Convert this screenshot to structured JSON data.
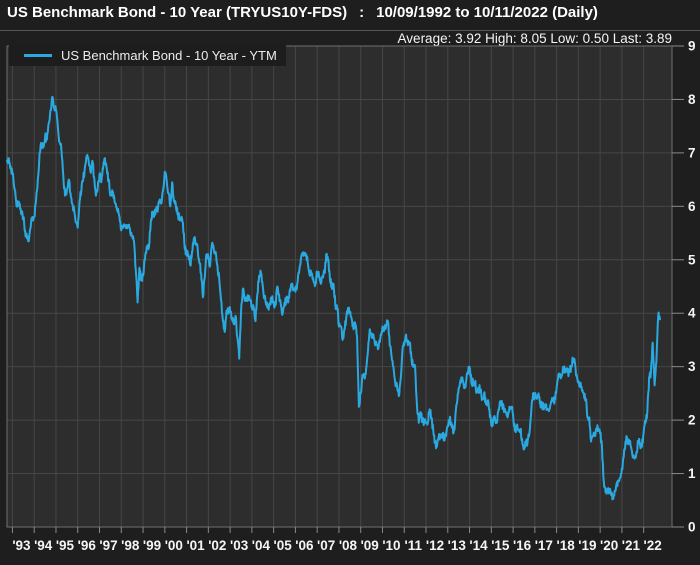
{
  "header": {
    "title_main": "US Benchmark Bond - 10 Year (TRYUS10Y-FDS)",
    "title_colon": ":",
    "title_range": "10/09/1992 to 10/11/2022 (Daily)",
    "stats_text": "Average: 3.92 High: 8.05 Low: 0.50 Last: 3.89"
  },
  "legend": {
    "series_label": "US Benchmark Bond - 10 Year - YTM"
  },
  "chart_data": {
    "type": "line",
    "title": "US Benchmark Bond - 10 Year (TRYUS10Y-FDS)",
    "series_name": "US Benchmark Bond - 10 Year - YTM",
    "date_range": {
      "start": "10/09/1992",
      "end": "10/11/2022",
      "frequency": "Daily"
    },
    "stats": {
      "average": 3.92,
      "high": 8.05,
      "low": 0.5,
      "last": 3.89
    },
    "y_axis": {
      "min": 0,
      "max": 9,
      "step": 1,
      "side": "right",
      "ticks": [
        "0",
        "1",
        "2",
        "3",
        "4",
        "5",
        "6",
        "7",
        "8",
        "9"
      ]
    },
    "x_tick_labels": [
      "'93",
      "'94",
      "'95",
      "'96",
      "'97",
      "'98",
      "'99",
      "'00",
      "'01",
      "'02",
      "'03",
      "'04",
      "'05",
      "'06",
      "'07",
      "'08",
      "'09",
      "'10",
      "'11",
      "'12",
      "'13",
      "'14",
      "'15",
      "'16",
      "'17",
      "'18",
      "'19",
      "'20",
      "'21",
      "'22"
    ],
    "grid": true,
    "line_color": "#2aa9e0",
    "colors": {
      "page_bg": "#1e1e1e",
      "plot_bg": "#2d2d2d",
      "grid": "#464646",
      "border": "#707070",
      "tick": "#8a8a8a",
      "text": "#f5f5f5"
    },
    "series_start": {
      "year": 1992,
      "month": 10
    },
    "monthly_ytm": [
      6.85,
      6.9,
      6.75,
      6.6,
      6.35,
      6.1,
      6.0,
      6.05,
      5.85,
      5.8,
      5.55,
      5.4,
      5.35,
      5.6,
      5.8,
      5.8,
      6.1,
      6.5,
      7.0,
      7.15,
      7.1,
      7.3,
      7.25,
      7.55,
      7.8,
      8.05,
      7.85,
      7.8,
      7.5,
      7.2,
      7.05,
      6.6,
      6.2,
      6.3,
      6.5,
      6.25,
      6.05,
      5.95,
      5.7,
      5.6,
      6.1,
      6.3,
      6.5,
      6.75,
      6.9,
      6.85,
      6.65,
      6.85,
      6.55,
      6.2,
      6.35,
      6.6,
      6.45,
      6.7,
      6.9,
      6.7,
      6.5,
      6.2,
      6.3,
      6.2,
      6.05,
      5.9,
      5.8,
      5.55,
      5.6,
      5.65,
      5.65,
      5.65,
      5.5,
      5.45,
      5.35,
      4.8,
      4.2,
      4.85,
      4.65,
      4.7,
      5.0,
      5.25,
      5.2,
      5.55,
      5.9,
      5.8,
      5.95,
      5.9,
      6.1,
      6.05,
      6.3,
      6.65,
      6.5,
      6.25,
      6.0,
      6.45,
      6.1,
      6.05,
      5.85,
      5.8,
      5.75,
      5.7,
      5.2,
      5.15,
      5.1,
      4.9,
      5.15,
      5.4,
      5.3,
      5.25,
      4.95,
      4.75,
      4.3,
      4.65,
      5.1,
      5.05,
      4.9,
      5.3,
      5.2,
      5.15,
      4.9,
      4.65,
      4.25,
      3.85,
      3.65,
      4.05,
      4.0,
      4.05,
      3.9,
      3.8,
      3.95,
      3.55,
      3.15,
      4.0,
      4.45,
      4.25,
      4.3,
      4.3,
      4.25,
      4.15,
      4.1,
      3.85,
      4.35,
      4.7,
      4.75,
      4.5,
      4.3,
      4.15,
      4.1,
      4.2,
      4.25,
      4.2,
      4.15,
      4.5,
      4.35,
      4.15,
      4.0,
      4.2,
      4.25,
      4.2,
      4.45,
      4.55,
      4.45,
      4.4,
      4.55,
      4.75,
      5.0,
      5.1,
      5.1,
      5.1,
      4.9,
      4.7,
      4.75,
      4.6,
      4.55,
      4.75,
      4.7,
      4.55,
      4.7,
      4.75,
      5.1,
      5.0,
      4.65,
      4.5,
      4.55,
      4.15,
      4.1,
      3.75,
      3.75,
      3.5,
      3.7,
      3.9,
      4.1,
      4.0,
      3.9,
      3.7,
      3.8,
      3.55,
      2.25,
      2.5,
      2.85,
      2.8,
      2.95,
      3.3,
      3.7,
      3.55,
      3.6,
      3.4,
      3.4,
      3.4,
      3.6,
      3.75,
      3.7,
      3.75,
      3.85,
      3.4,
      3.2,
      3.0,
      2.7,
      2.65,
      2.45,
      2.75,
      3.3,
      3.4,
      3.6,
      3.4,
      3.45,
      3.15,
      3.0,
      3.0,
      2.3,
      1.95,
      2.15,
      2.0,
      1.95,
      1.95,
      1.95,
      2.2,
      2.05,
      1.8,
      1.6,
      1.5,
      1.7,
      1.7,
      1.75,
      1.65,
      1.7,
      1.9,
      2.0,
      1.95,
      1.75,
      1.95,
      2.3,
      2.6,
      2.75,
      2.8,
      2.6,
      2.7,
      2.9,
      3.0,
      2.7,
      2.7,
      2.7,
      2.55,
      2.6,
      2.55,
      2.4,
      2.5,
      2.3,
      2.35,
      2.2,
      1.9,
      2.0,
      2.05,
      1.95,
      2.2,
      2.35,
      2.3,
      2.15,
      2.15,
      2.05,
      2.25,
      2.25,
      2.1,
      1.8,
      1.9,
      1.8,
      1.8,
      1.65,
      1.45,
      1.55,
      1.6,
      1.75,
      2.15,
      2.5,
      2.45,
      2.4,
      2.5,
      2.3,
      2.3,
      2.2,
      2.3,
      2.2,
      2.2,
      2.35,
      2.35,
      2.4,
      2.6,
      2.85,
      2.85,
      2.85,
      3.0,
      2.9,
      2.9,
      2.9,
      3.0,
      3.15,
      3.1,
      2.85,
      2.7,
      2.65,
      2.55,
      2.5,
      2.4,
      2.05,
      2.05,
      1.6,
      1.7,
      1.7,
      1.8,
      1.85,
      1.75,
      1.5,
      0.85,
      0.65,
      0.65,
      0.7,
      0.6,
      0.52,
      0.68,
      0.8,
      0.85,
      0.92,
      1.1,
      1.3,
      1.6,
      1.65,
      1.6,
      1.5,
      1.3,
      1.28,
      1.4,
      1.6,
      1.55,
      1.5,
      1.78,
      1.95,
      2.15,
      2.8,
      2.9,
      3.45,
      2.65,
      3.1,
      3.95,
      3.89
    ]
  }
}
